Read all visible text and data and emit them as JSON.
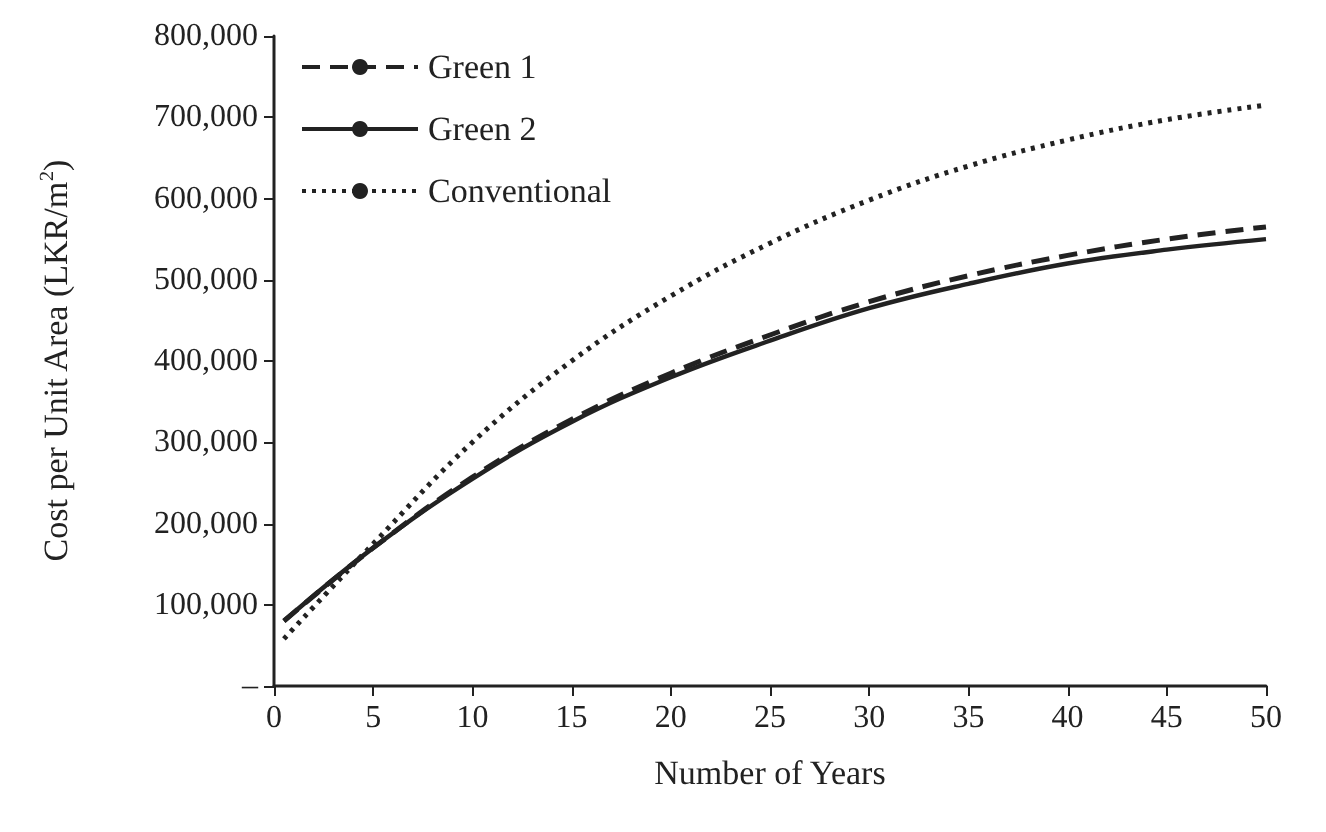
{
  "chart_data": {
    "type": "line",
    "xlabel": "Number of Years",
    "ylabel": "Cost per Unit Area (LKR/m$^{2}$)",
    "x": [
      0.5,
      5,
      10,
      15,
      20,
      25,
      30,
      35,
      40,
      45,
      50
    ],
    "series": [
      {
        "name": "Green 1",
        "color": "#222222",
        "line_style": "dashed",
        "values": [
          80000,
          170000,
          257000,
          328000,
          385000,
          432000,
          473000,
          505000,
          530000,
          550000,
          565000
        ]
      },
      {
        "name": "Green 2",
        "color": "#222222",
        "line_style": "solid",
        "values": [
          80000,
          170000,
          255000,
          325000,
          380000,
          425000,
          465000,
          495000,
          520000,
          537000,
          550000
        ]
      },
      {
        "name": "Conventional",
        "color": "#222222",
        "line_style": "dotted",
        "values": [
          58000,
          175000,
          300000,
          400000,
          480000,
          545000,
          598000,
          640000,
          672000,
          697000,
          715000
        ]
      }
    ],
    "xlim": [
      0,
      50
    ],
    "xticks": [
      0,
      5,
      10,
      15,
      20,
      25,
      30,
      35,
      40,
      45,
      50
    ],
    "ylim": [
      0,
      800000
    ],
    "yticks": [
      {
        "value": 0,
        "label": "–"
      },
      {
        "value": 100000,
        "label": "100,000"
      },
      {
        "value": 200000,
        "label": "200,000"
      },
      {
        "value": 300000,
        "label": "300,000"
      },
      {
        "value": 400000,
        "label": "400,000"
      },
      {
        "value": 500000,
        "label": "500,000"
      },
      {
        "value": 600000,
        "label": "600,000"
      },
      {
        "value": 700000,
        "label": "700,000"
      },
      {
        "value": 800000,
        "label": "800,000"
      }
    ],
    "grid": false,
    "legend": "top left",
    "marker": "none"
  }
}
